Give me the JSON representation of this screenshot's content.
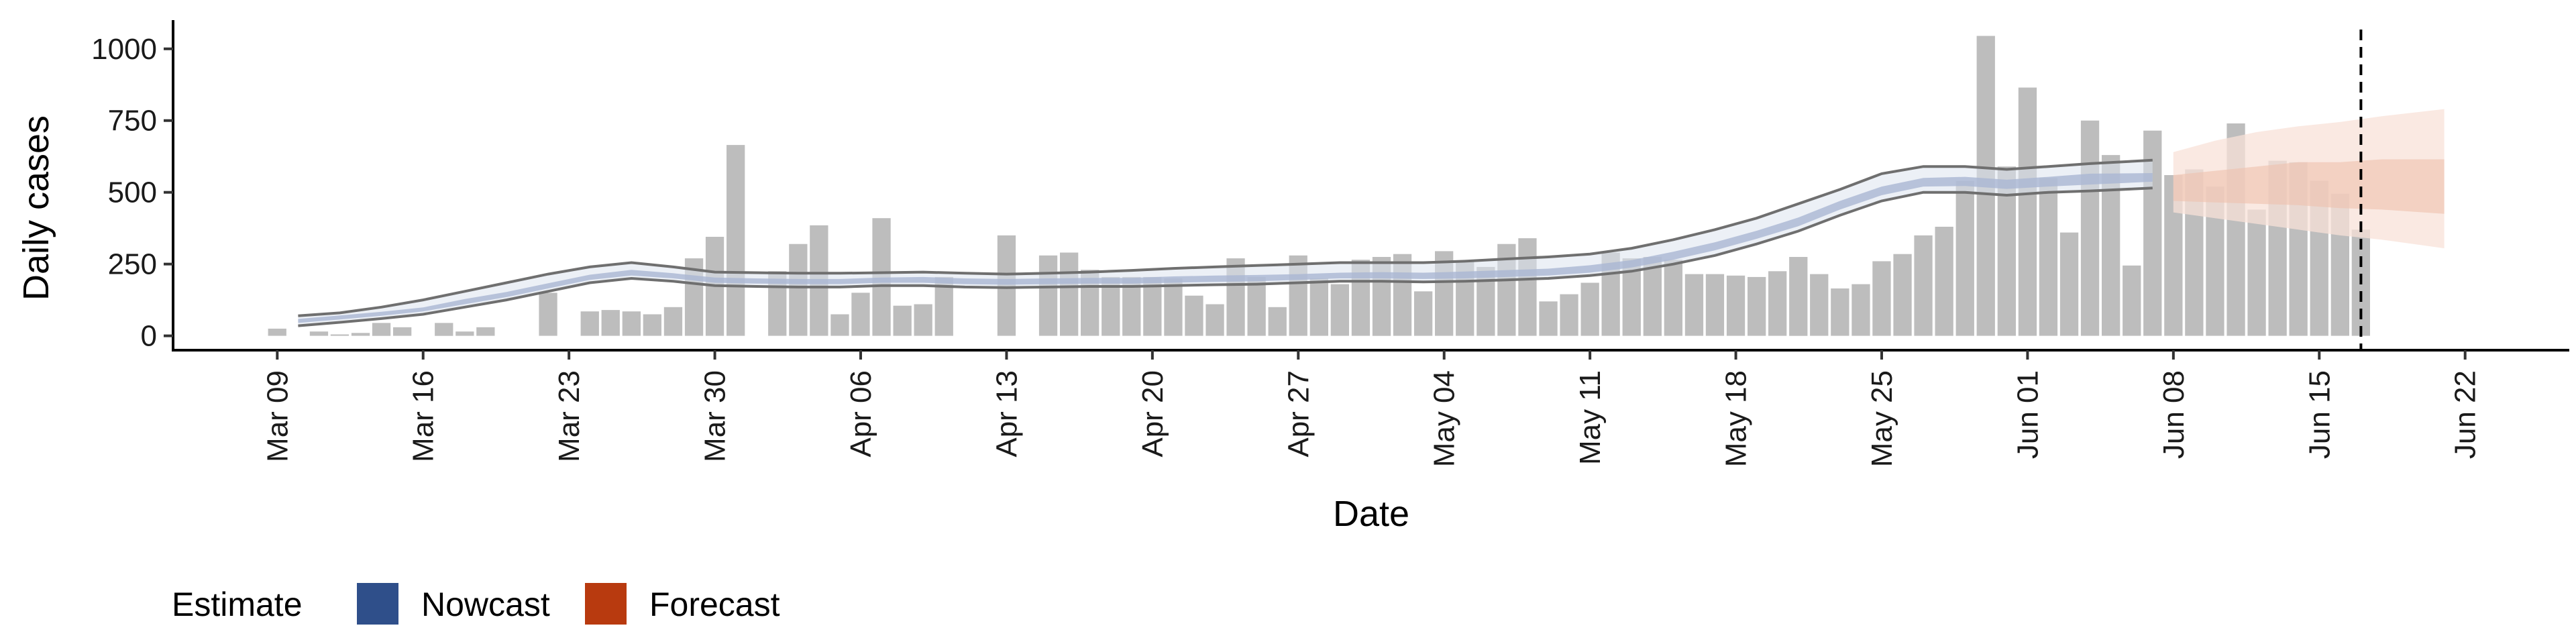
{
  "chart_data": {
    "type": "bar",
    "xlabel": "Date",
    "ylabel": "Daily cases",
    "ylim": [
      -50,
      1100
    ],
    "xlim": [
      "2020-03-04",
      "2020-06-27"
    ],
    "yticks": [
      0,
      250,
      500,
      750,
      1000
    ],
    "ytick_labels": [
      "0",
      "250",
      "500",
      "750",
      "1000"
    ],
    "xticks": [
      "2020-03-09",
      "2020-03-16",
      "2020-03-23",
      "2020-03-30",
      "2020-04-06",
      "2020-04-13",
      "2020-04-20",
      "2020-04-27",
      "2020-05-04",
      "2020-05-11",
      "2020-05-18",
      "2020-05-25",
      "2020-06-01",
      "2020-06-08",
      "2020-06-15",
      "2020-06-22"
    ],
    "xtick_labels": [
      "Mar 09",
      "Mar 16",
      "Mar 23",
      "Mar 30",
      "Apr 06",
      "Apr 13",
      "Apr 20",
      "Apr 27",
      "May 04",
      "May 11",
      "May 18",
      "May 25",
      "Jun 01",
      "Jun 08",
      "Jun 15",
      "Jun 22"
    ],
    "grid": false,
    "reference_line": {
      "x": "2020-06-17",
      "style": "dashed"
    },
    "legend": {
      "title": "Estimate",
      "position": "bottom-left",
      "items": [
        {
          "label": "Nowcast",
          "color": "#2f4f8a"
        },
        {
          "label": "Forecast",
          "color": "#b83a0f"
        }
      ]
    },
    "colors": {
      "bars": "#bdbdbd",
      "nowcast_inner": "#aab6d3",
      "nowcast_outer": "#dde3ef",
      "nowcast_bounds": "#6f6f6f",
      "forecast_inner": "#efc1ae",
      "forecast_outer": "#f8e2d8",
      "reference_line": "#000000"
    },
    "series": [
      {
        "name": "Daily cases",
        "type": "bar",
        "x": [
          "2020-03-09",
          "2020-03-10",
          "2020-03-11",
          "2020-03-12",
          "2020-03-13",
          "2020-03-14",
          "2020-03-15",
          "2020-03-16",
          "2020-03-17",
          "2020-03-18",
          "2020-03-19",
          "2020-03-20",
          "2020-03-21",
          "2020-03-22",
          "2020-03-23",
          "2020-03-24",
          "2020-03-25",
          "2020-03-26",
          "2020-03-27",
          "2020-03-28",
          "2020-03-29",
          "2020-03-30",
          "2020-03-31",
          "2020-04-01",
          "2020-04-02",
          "2020-04-03",
          "2020-04-04",
          "2020-04-05",
          "2020-04-06",
          "2020-04-07",
          "2020-04-08",
          "2020-04-09",
          "2020-04-10",
          "2020-04-11",
          "2020-04-12",
          "2020-04-13",
          "2020-04-14",
          "2020-04-15",
          "2020-04-16",
          "2020-04-17",
          "2020-04-18",
          "2020-04-19",
          "2020-04-20",
          "2020-04-21",
          "2020-04-22",
          "2020-04-23",
          "2020-04-24",
          "2020-04-25",
          "2020-04-26",
          "2020-04-27",
          "2020-04-28",
          "2020-04-29",
          "2020-04-30",
          "2020-05-01",
          "2020-05-02",
          "2020-05-03",
          "2020-05-04",
          "2020-05-05",
          "2020-05-06",
          "2020-05-07",
          "2020-05-08",
          "2020-05-09",
          "2020-05-10",
          "2020-05-11",
          "2020-05-12",
          "2020-05-13",
          "2020-05-14",
          "2020-05-15",
          "2020-05-16",
          "2020-05-17",
          "2020-05-18",
          "2020-05-19",
          "2020-05-20",
          "2020-05-21",
          "2020-05-22",
          "2020-05-23",
          "2020-05-24",
          "2020-05-25",
          "2020-05-26",
          "2020-05-27",
          "2020-05-28",
          "2020-05-29",
          "2020-05-30",
          "2020-05-31",
          "2020-06-01",
          "2020-06-02",
          "2020-06-03",
          "2020-06-04",
          "2020-06-05",
          "2020-06-06",
          "2020-06-07",
          "2020-06-08",
          "2020-06-09",
          "2020-06-10",
          "2020-06-11",
          "2020-06-12",
          "2020-06-13",
          "2020-06-14",
          "2020-06-15",
          "2020-06-16",
          "2020-06-17"
        ],
        "values": [
          25,
          0,
          15,
          5,
          10,
          45,
          30,
          0,
          45,
          15,
          30,
          0,
          0,
          150,
          0,
          85,
          90,
          85,
          75,
          100,
          270,
          345,
          665,
          0,
          225,
          320,
          385,
          75,
          150,
          410,
          105,
          110,
          205,
          0,
          0,
          350,
          0,
          280,
          290,
          230,
          205,
          205,
          205,
          200,
          140,
          110,
          270,
          205,
          100,
          280,
          200,
          180,
          265,
          275,
          285,
          155,
          295,
          260,
          240,
          320,
          340,
          120,
          145,
          185,
          290,
          270,
          275,
          265,
          215,
          215,
          210,
          205,
          225,
          275,
          215,
          165,
          180,
          260,
          285,
          350,
          380,
          540,
          1045,
          590,
          865,
          550,
          360,
          750,
          630,
          245,
          715,
          560,
          580,
          520,
          740,
          440,
          610,
          605,
          540,
          495,
          370
        ]
      },
      {
        "name": "Nowcast",
        "type": "band",
        "x": [
          "2020-03-10",
          "2020-03-12",
          "2020-03-14",
          "2020-03-16",
          "2020-03-18",
          "2020-03-20",
          "2020-03-22",
          "2020-03-24",
          "2020-03-26",
          "2020-03-28",
          "2020-03-30",
          "2020-04-01",
          "2020-04-03",
          "2020-04-05",
          "2020-04-07",
          "2020-04-09",
          "2020-04-11",
          "2020-04-13",
          "2020-04-15",
          "2020-04-17",
          "2020-04-19",
          "2020-04-21",
          "2020-04-23",
          "2020-04-25",
          "2020-04-27",
          "2020-04-29",
          "2020-05-01",
          "2020-05-03",
          "2020-05-05",
          "2020-05-07",
          "2020-05-09",
          "2020-05-11",
          "2020-05-13",
          "2020-05-15",
          "2020-05-17",
          "2020-05-19",
          "2020-05-21",
          "2020-05-23",
          "2020-05-25",
          "2020-05-27",
          "2020-05-29",
          "2020-05-31",
          "2020-06-02",
          "2020-06-04",
          "2020-06-07"
        ],
        "lower_outer": [
          35,
          47,
          60,
          75,
          100,
          125,
          155,
          185,
          200,
          190,
          175,
          172,
          170,
          170,
          175,
          175,
          170,
          168,
          170,
          172,
          172,
          175,
          178,
          180,
          185,
          190,
          190,
          188,
          190,
          195,
          200,
          210,
          225,
          250,
          280,
          320,
          365,
          420,
          470,
          500,
          500,
          490,
          500,
          505,
          515
        ],
        "lower_inner": [
          45,
          57,
          70,
          85,
          110,
          135,
          165,
          195,
          210,
          200,
          185,
          182,
          180,
          180,
          185,
          185,
          180,
          178,
          180,
          182,
          182,
          185,
          188,
          190,
          195,
          200,
          200,
          198,
          200,
          205,
          210,
          220,
          238,
          265,
          298,
          338,
          382,
          440,
          490,
          520,
          522,
          512,
          520,
          527,
          537
        ],
        "median": [
          52,
          64,
          77,
          92,
          119,
          144,
          174,
          204,
          220,
          209,
          194,
          191,
          189,
          189,
          194,
          195,
          190,
          188,
          190,
          192,
          192,
          196,
          199,
          201,
          205,
          210,
          211,
          209,
          212,
          217,
          222,
          233,
          251,
          279,
          312,
          352,
          397,
          455,
          505,
          535,
          538,
          528,
          537,
          546,
          552
        ],
        "upper_inner": [
          59,
          71,
          84,
          99,
          128,
          153,
          183,
          213,
          230,
          218,
          203,
          200,
          198,
          198,
          203,
          205,
          200,
          198,
          200,
          202,
          202,
          207,
          210,
          212,
          215,
          220,
          222,
          220,
          224,
          229,
          234,
          246,
          264,
          293,
          326,
          366,
          412,
          470,
          520,
          550,
          554,
          544,
          554,
          565,
          567
        ],
        "upper_outer": [
          70,
          80,
          100,
          125,
          155,
          185,
          215,
          240,
          255,
          240,
          222,
          220,
          218,
          218,
          220,
          222,
          218,
          215,
          218,
          222,
          228,
          235,
          240,
          245,
          250,
          255,
          255,
          255,
          260,
          268,
          275,
          285,
          305,
          335,
          370,
          410,
          460,
          510,
          565,
          590,
          590,
          580,
          590,
          600,
          612
        ]
      },
      {
        "name": "Forecast",
        "type": "band",
        "x": [
          "2020-06-08",
          "2020-06-10",
          "2020-06-12",
          "2020-06-14",
          "2020-06-16",
          "2020-06-18",
          "2020-06-21"
        ],
        "lower_outer": [
          430,
          410,
          390,
          370,
          350,
          335,
          305
        ],
        "lower_inner": [
          470,
          465,
          460,
          455,
          445,
          440,
          425
        ],
        "median": [
          515,
          520,
          525,
          530,
          525,
          527,
          520
        ],
        "upper_inner": [
          560,
          575,
          590,
          605,
          605,
          615,
          615
        ],
        "upper_outer": [
          640,
          680,
          710,
          730,
          745,
          765,
          790
        ]
      }
    ]
  }
}
